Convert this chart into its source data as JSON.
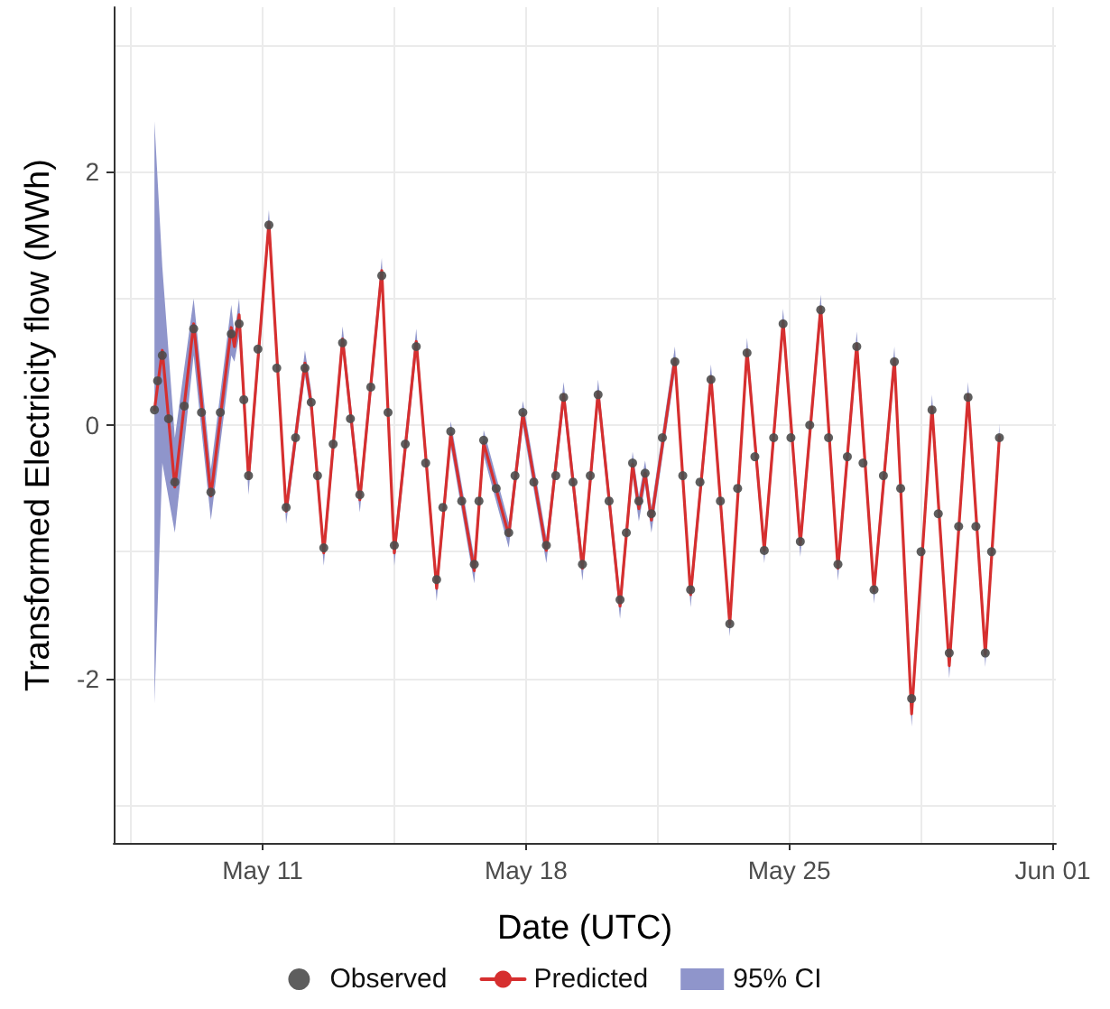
{
  "chart_data": {
    "type": "line",
    "xlabel": "Date (UTC)",
    "ylabel": "Transformed Electricity flow (MWh)",
    "xlim": [
      "--05-07T01:00",
      "--06-01T02:00"
    ],
    "xticks": [
      {
        "value": "--05-07T12:00",
        "label": null
      },
      {
        "value": "--05-11",
        "label": "May 11"
      },
      {
        "value": "--05-14T12:00",
        "label": null
      },
      {
        "value": "--05-18",
        "label": "May 18"
      },
      {
        "value": "--05-21T12:00",
        "label": null
      },
      {
        "value": "--05-25",
        "label": "May 25"
      },
      {
        "value": "--05-28T12:00",
        "label": null
      },
      {
        "value": "--06-01",
        "label": "Jun 01"
      }
    ],
    "ylim": [
      -3.3,
      3.3
    ],
    "yticks": [
      {
        "value": -3,
        "label": null
      },
      -2,
      {
        "value": -1,
        "label": null
      },
      0,
      {
        "value": 1,
        "label": null
      },
      2,
      {
        "value": 3,
        "label": null
      }
    ],
    "grid": true,
    "legend": "bottom",
    "series": [
      {
        "name": "Observed",
        "type": "scatter",
        "marker": "circle",
        "color": "#4d4d4d",
        "x": [
          "--05-08T03:00",
          "--05-08T05:00",
          "--05-08T08:00",
          "--05-08T12:00",
          "--05-08T16:00",
          "--05-08T22:00",
          "--05-09T04:00",
          "--05-09T09:00",
          "--05-09T15:00",
          "--05-09T21:00",
          "--05-10T04:00",
          "--05-10T09:00",
          "--05-10T12:00",
          "--05-10T15:00",
          "--05-10T21:00",
          "--05-11T04:00",
          "--05-11T09:00",
          "--05-11T15:00",
          "--05-11T21:00",
          "--05-12T03:00",
          "--05-12T07:00",
          "--05-12T11:00",
          "--05-12T15:00",
          "--05-12T21:00",
          "--05-13T03:00",
          "--05-13T08:00",
          "--05-13T14:00",
          "--05-13T21:00",
          "--05-14T04:00",
          "--05-14T08:00",
          "--05-14T12:00",
          "--05-14T19:00",
          "--05-15T02:00",
          "--05-15T08:00",
          "--05-15T15:00",
          "--05-15T19:00",
          "--05-16T00:00",
          "--05-16T07:00",
          "--05-16T15:00",
          "--05-16T18:00",
          "--05-16T21:00",
          "--05-17T05:00",
          "--05-17T13:00",
          "--05-17T17:00",
          "--05-17T22:00",
          "--05-18T05:00",
          "--05-18T13:00",
          "--05-18T19:00",
          "--05-19T00:00",
          "--05-19T06:00",
          "--05-19T12:00",
          "--05-19T17:00",
          "--05-19T22:00",
          "--05-20T05:00",
          "--05-20T12:00",
          "--05-20T16:00",
          "--05-20T20:00",
          "--05-21T00:00",
          "--05-21T04:00",
          "--05-21T08:00",
          "--05-21T15:00",
          "--05-21T23:00",
          "--05-22T04:00",
          "--05-22T09:00",
          "--05-22T15:00",
          "--05-22T22:00",
          "--05-23T04:00",
          "--05-23T10:00",
          "--05-23T15:00",
          "--05-23T21:00",
          "--05-24T02:00",
          "--05-24T08:00",
          "--05-24T14:00",
          "--05-24T20:00",
          "--05-25T01:00",
          "--05-25T07:00",
          "--05-25T13:00",
          "--05-25T20:00",
          "--05-26T01:00",
          "--05-26T07:00",
          "--05-26T13:00",
          "--05-26T19:00",
          "--05-26T23:00",
          "--05-27T06:00",
          "--05-27T12:00",
          "--05-27T19:00",
          "--05-27T23:00",
          "--05-28T06:00",
          "--05-28T12:00",
          "--05-28T19:00",
          "--05-28T23:00",
          "--05-29T06:00",
          "--05-29T12:00",
          "--05-29T18:00",
          "--05-29T23:00",
          "--05-30T05:00",
          "--05-30T09:00",
          "--05-30T14:00"
        ],
        "values": [
          0.12,
          0.35,
          0.55,
          0.05,
          -0.45,
          0.15,
          0.76,
          0.1,
          -0.53,
          0.1,
          0.72,
          0.8,
          0.2,
          -0.4,
          0.6,
          1.58,
          0.45,
          -0.65,
          -0.1,
          0.45,
          0.18,
          -0.4,
          -0.97,
          -0.15,
          0.65,
          0.05,
          -0.55,
          0.3,
          1.18,
          0.1,
          -0.95,
          -0.15,
          0.62,
          -0.3,
          -1.22,
          -0.65,
          -0.05,
          -0.6,
          -1.1,
          -0.6,
          -0.12,
          -0.5,
          -0.85,
          -0.4,
          0.1,
          -0.45,
          -0.95,
          -0.4,
          0.22,
          -0.45,
          -1.1,
          -0.4,
          0.24,
          -0.6,
          -1.38,
          -0.85,
          -0.3,
          -0.6,
          -0.38,
          -0.7,
          -0.1,
          0.5,
          -0.4,
          -1.3,
          -0.45,
          0.36,
          -0.6,
          -1.57,
          -0.5,
          0.57,
          -0.25,
          -0.99,
          -0.1,
          0.8,
          -0.1,
          -0.92,
          0.0,
          0.91,
          -0.1,
          -1.1,
          -0.25,
          0.62,
          -0.3,
          -1.3,
          -0.4,
          0.5,
          -0.5,
          -2.16,
          -1.0,
          0.12,
          -0.7,
          -1.8,
          -0.8,
          0.22,
          -0.8,
          -1.8,
          -1.0,
          -0.1
        ]
      },
      {
        "name": "Predicted",
        "marker": "none",
        "line_style": "solid",
        "color": "#d62f2f",
        "x": [
          "--05-08T03:00",
          "--05-08T08:00",
          "--05-08T16:00",
          "--05-09T04:00",
          "--05-09T15:00",
          "--05-10T04:00",
          "--05-10T06:00",
          "--05-10T09:00",
          "--05-10T15:00",
          "--05-11T04:00",
          "--05-11T15:00",
          "--05-12T03:00",
          "--05-12T07:00",
          "--05-12T15:00",
          "--05-13T03:00",
          "--05-13T14:00",
          "--05-14T04:00",
          "--05-14T12:00",
          "--05-15T02:00",
          "--05-15T15:00",
          "--05-16T00:00",
          "--05-16T15:00",
          "--05-16T21:00",
          "--05-17T13:00",
          "--05-17T22:00",
          "--05-18T13:00",
          "--05-19T00:00",
          "--05-19T12:00",
          "--05-19T22:00",
          "--05-20T12:00",
          "--05-20T20:00",
          "--05-21T00:00",
          "--05-21T04:00",
          "--05-21T08:00",
          "--05-21T23:00",
          "--05-22T09:00",
          "--05-22T22:00",
          "--05-23T10:00",
          "--05-23T21:00",
          "--05-24T08:00",
          "--05-24T20:00",
          "--05-25T07:00",
          "--05-25T20:00",
          "--05-26T07:00",
          "--05-26T19:00",
          "--05-27T06:00",
          "--05-27T19:00",
          "--05-28T06:00",
          "--05-28T19:00",
          "--05-29T06:00",
          "--05-29T18:00",
          "--05-30T05:00",
          "--05-30T14:00"
        ],
        "values": [
          0.12,
          0.59,
          -0.49,
          0.8,
          -0.56,
          0.77,
          0.62,
          0.87,
          -0.42,
          1.6,
          -0.68,
          0.49,
          0.17,
          -1.01,
          0.68,
          -0.59,
          1.22,
          -1.01,
          0.66,
          -1.29,
          -0.07,
          -1.15,
          -0.14,
          -0.87,
          0.09,
          -0.99,
          0.24,
          -1.13,
          0.26,
          -1.43,
          -0.31,
          -0.66,
          -0.38,
          -0.75,
          0.52,
          -1.34,
          0.38,
          -1.57,
          0.59,
          -0.99,
          0.82,
          -0.94,
          0.93,
          -1.13,
          0.64,
          -1.31,
          0.52,
          -2.28,
          0.14,
          -1.9,
          0.24,
          -1.81,
          -0.09
        ],
        "upper": [
          2.4,
          1.25,
          -0.1,
          1.0,
          -0.35,
          0.95,
          0.72,
          1.0,
          -0.32,
          1.7,
          -0.58,
          0.59,
          0.27,
          -0.91,
          0.78,
          -0.49,
          1.32,
          -0.91,
          0.76,
          -1.19,
          0.03,
          -1.05,
          -0.04,
          -0.77,
          0.19,
          -0.89,
          0.34,
          -1.03,
          0.36,
          -1.33,
          -0.21,
          -0.56,
          -0.28,
          -0.65,
          0.62,
          -1.24,
          0.48,
          -1.47,
          0.69,
          -0.89,
          0.92,
          -0.84,
          1.03,
          -1.03,
          0.74,
          -1.21,
          0.62,
          -2.18,
          0.24,
          -1.8,
          0.34,
          -1.71,
          0.01
        ],
        "lower": [
          -2.2,
          -0.3,
          -0.85,
          0.55,
          -0.75,
          0.55,
          0.5,
          0.7,
          -0.55,
          1.5,
          -0.78,
          0.39,
          0.07,
          -1.11,
          0.58,
          -0.69,
          1.12,
          -1.11,
          0.56,
          -1.39,
          -0.17,
          -1.25,
          -0.24,
          -0.97,
          -0.01,
          -1.09,
          0.14,
          -1.23,
          0.16,
          -1.53,
          -0.41,
          -0.76,
          -0.48,
          -0.85,
          0.42,
          -1.44,
          0.28,
          -1.67,
          0.49,
          -1.09,
          0.72,
          -1.04,
          0.83,
          -1.23,
          0.54,
          -1.41,
          0.42,
          -2.38,
          0.04,
          -2.0,
          0.14,
          -1.91,
          -0.19
        ]
      },
      {
        "name": "95% CI",
        "type": "area",
        "color": "#8f95cb"
      }
    ]
  }
}
